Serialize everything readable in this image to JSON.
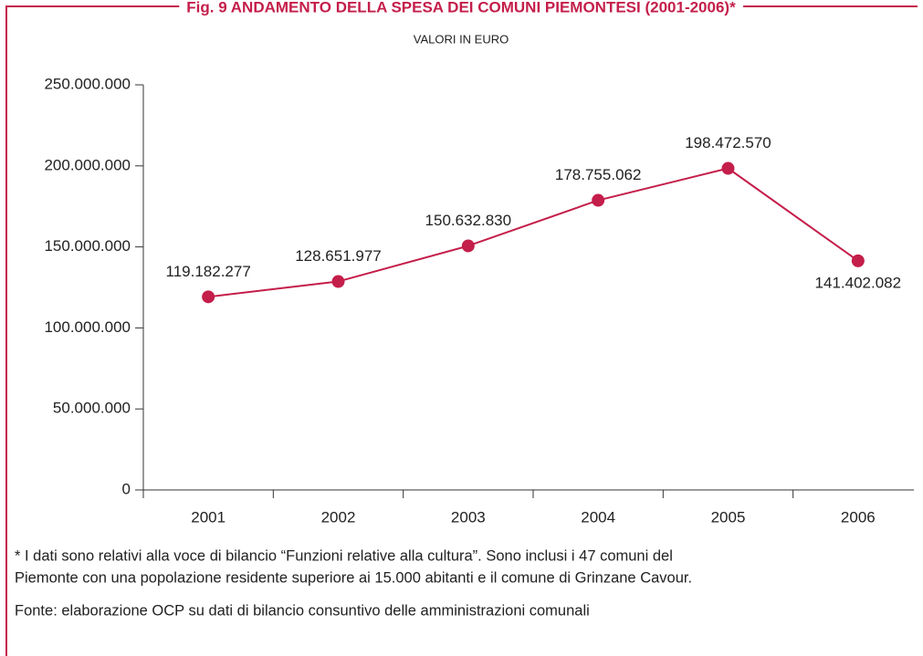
{
  "chart_data": {
    "type": "line",
    "title": "Fig. 9 ANDAMENTO DELLA SPESA DEI COMUNI PIEMONTESI (2001-2006)*",
    "subtitle": "VALORI IN EURO",
    "categories": [
      "2001",
      "2002",
      "2003",
      "2004",
      "2005",
      "2006"
    ],
    "values": [
      119182277,
      128651977,
      150632830,
      178755062,
      198472570,
      141402082
    ],
    "value_labels": [
      "119.182.277",
      "128.651.977",
      "150.632.830",
      "178.755.062",
      "198.472.570",
      "141.402.082"
    ],
    "color": "#c41e4a",
    "ylim": [
      0,
      250000000
    ],
    "yticks": [
      0,
      {
        "value": 50000000,
        "label": "50.000.000"
      },
      {
        "value": 100000000,
        "label": "100.000.000"
      },
      {
        "value": 150000000,
        "label": "150.000.000"
      },
      {
        "value": 200000000,
        "label": "200.000.000"
      },
      {
        "value": 250000000,
        "label": "250.000.000"
      }
    ],
    "footnote": [
      "* I dati sono relativi alla voce di bilancio “Funzioni relative alla cultura”. Sono inclusi i 47 comuni del",
      "Piemonte con una popolazione residente superiore ai 15.000 abitanti e il comune di Grinzane Cavour."
    ],
    "source": "Fonte: elaborazione OCP su dati di bilancio consuntivo delle amministrazioni comunali"
  }
}
